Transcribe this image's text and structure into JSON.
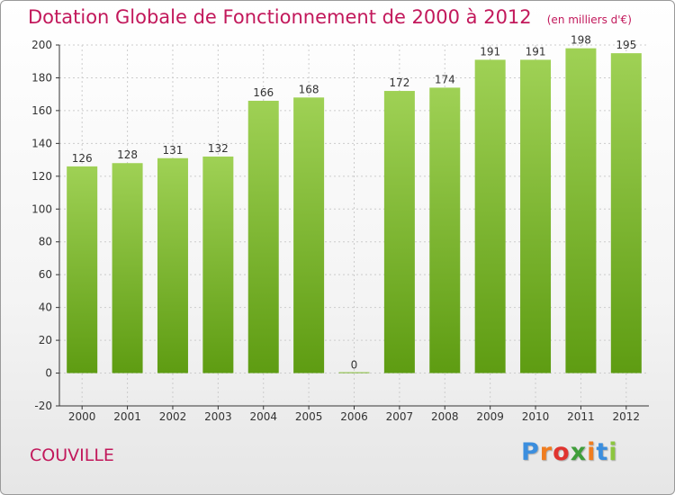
{
  "title": "Dotation Globale de Fonctionnement de 2000 à 2012",
  "unit_note": "(en milliers d'€)",
  "commune": "COUVILLE",
  "logo": {
    "text": "Proxiti",
    "letters": [
      "P",
      "r",
      "o",
      "x",
      "i",
      "t",
      "i"
    ],
    "colors": [
      "#3b8ede",
      "#f07d1f",
      "#e0342f",
      "#3f9e3a",
      "#f07d1f",
      "#3b8ede",
      "#8cc63f"
    ]
  },
  "colors": {
    "title": "#c2185b",
    "bar_top": "#9fd155",
    "bar_bottom": "#5e9c12",
    "axis": "#333333",
    "grid": "#cccccc"
  },
  "chart_data": {
    "type": "bar",
    "title": "Dotation Globale de Fonctionnement de 2000 à 2012",
    "subtitle": "(en milliers d'€)",
    "categories": [
      "2000",
      "2001",
      "2002",
      "2003",
      "2004",
      "2005",
      "2006",
      "2007",
      "2008",
      "2009",
      "2010",
      "2011",
      "2012"
    ],
    "values": [
      126,
      128,
      131,
      132,
      166,
      168,
      0,
      172,
      174,
      191,
      191,
      198,
      195
    ],
    "ylim": [
      -20,
      200
    ],
    "yticks": [
      -20,
      0,
      20,
      40,
      60,
      80,
      100,
      120,
      140,
      160,
      180,
      200
    ],
    "grid": true,
    "data_labels": true
  }
}
